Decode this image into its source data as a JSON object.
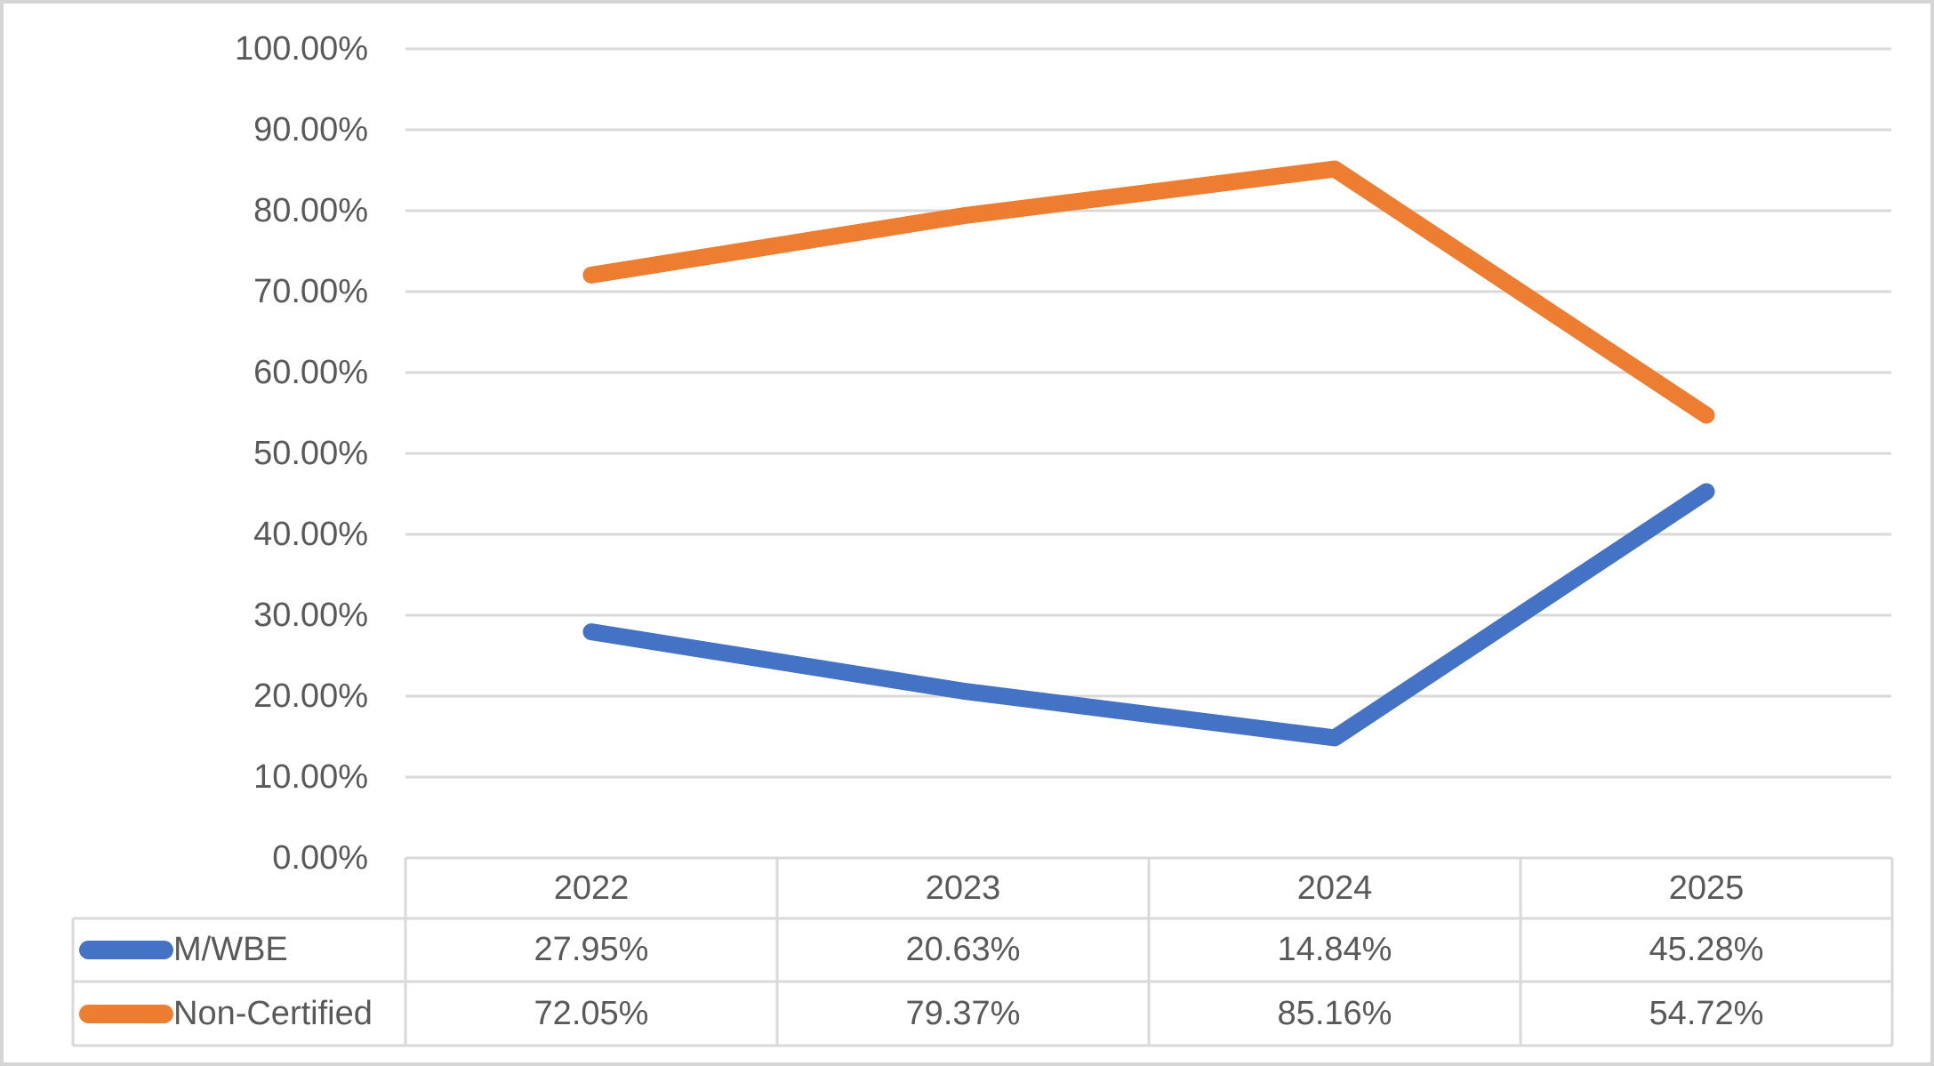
{
  "chart_data": {
    "type": "line",
    "title": "",
    "xlabel": "",
    "ylabel": "",
    "categories": [
      "2022",
      "2023",
      "2024",
      "2025"
    ],
    "series": [
      {
        "name": "M/WBE",
        "color": "#4472C4",
        "values": [
          27.95,
          20.63,
          14.84,
          45.28
        ],
        "display_values": [
          "27.95%",
          "20.63%",
          "14.84%",
          "45.28%"
        ]
      },
      {
        "name": "Non-Certified",
        "color": "#ED7D31",
        "values": [
          72.05,
          79.37,
          85.16,
          54.72
        ],
        "display_values": [
          "72.05%",
          "79.37%",
          "85.16%",
          "54.72%"
        ]
      }
    ],
    "ylim": [
      0,
      100
    ],
    "y_tick_labels": [
      "0.00%",
      "10.00%",
      "20.00%",
      "30.00%",
      "40.00%",
      "50.00%",
      "60.00%",
      "70.00%",
      "80.00%",
      "90.00%",
      "100.00%"
    ],
    "grid": true,
    "legend_position": "data-table-left",
    "has_data_table": true
  },
  "colors": {
    "gridline": "#D9D9D9",
    "table_border": "#D9D9D9",
    "text": "#595959",
    "canvas_border": "#D5D5D5",
    "background": "#FFFFFF"
  }
}
